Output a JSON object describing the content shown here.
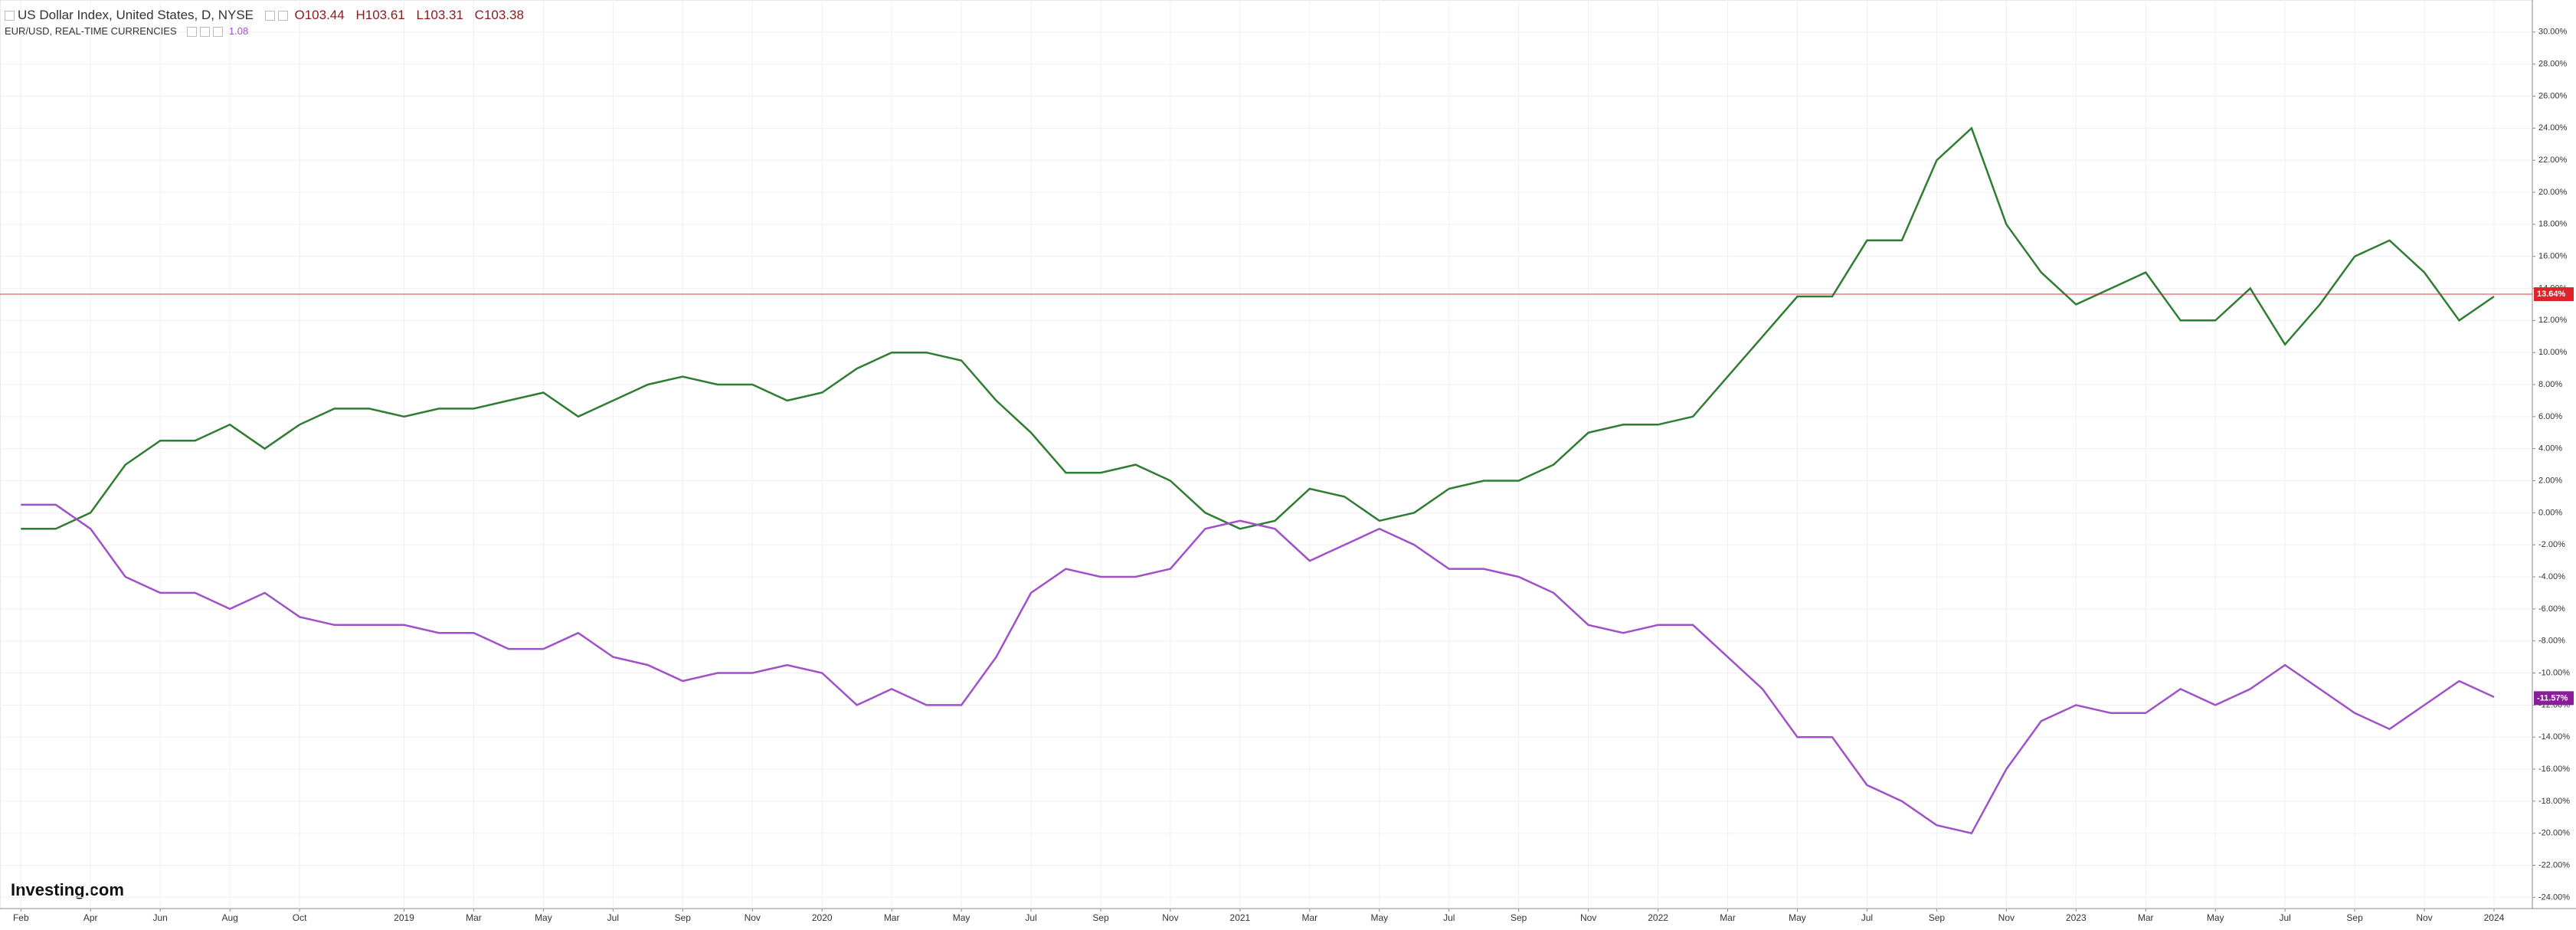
{
  "chart_data": {
    "type": "line",
    "header": {
      "symbol": "US Dollar Index, United States, D, NYSE",
      "open": "O103.44",
      "high": "H103.61",
      "low": "L103.31",
      "close": "C103.38",
      "compare": "EUR/USD, REAL-TIME CURRENCIES",
      "compare_value": "1.08"
    },
    "logo": "Investing.com",
    "x": [
      0,
      1,
      2,
      3,
      4,
      5,
      6,
      7,
      8,
      9,
      10,
      11,
      12,
      13,
      14,
      15,
      16,
      17,
      18,
      19,
      20,
      21,
      22,
      23,
      24,
      25,
      26,
      27,
      28,
      29,
      30,
      31,
      32,
      33,
      34,
      35,
      36,
      37,
      38,
      39,
      40,
      41,
      42,
      43,
      44,
      45,
      46,
      47,
      48,
      49,
      50,
      51,
      52,
      53,
      54,
      55,
      56,
      57,
      58,
      59,
      60,
      61,
      62,
      63,
      64,
      65,
      66,
      67,
      68,
      69,
      70,
      71
    ],
    "series": [
      {
        "color": "#2e7d32",
        "values": [
          -1,
          -1,
          0,
          3,
          4.5,
          4.5,
          5.5,
          4,
          5.5,
          6.5,
          6.5,
          6,
          6.5,
          6.5,
          7,
          7.5,
          6,
          7,
          8,
          8.5,
          8,
          8,
          7,
          7.5,
          9,
          10,
          10,
          9.5,
          7,
          5,
          2.5,
          2.5,
          3,
          2,
          0,
          -1,
          -0.5,
          1.5,
          1,
          -0.5,
          0,
          1.5,
          2,
          2,
          3,
          5,
          5.5,
          5.5,
          6,
          8.5,
          11,
          13.5,
          13.5,
          17,
          17,
          22,
          24,
          18,
          15,
          13,
          14,
          15,
          12,
          12,
          14,
          10.5,
          13,
          16,
          17,
          15,
          12,
          13.5
        ]
      },
      {
        "color": "#a050c8",
        "values": [
          0.5,
          0.5,
          -1,
          -4,
          -5,
          -5,
          -6,
          -5,
          -6.5,
          -7,
          -7,
          -7,
          -7.5,
          -7.5,
          -8.5,
          -8.5,
          -7.5,
          -9,
          -9.5,
          -10.5,
          -10,
          -10,
          -9.5,
          -10,
          -12,
          -11,
          -12,
          -12,
          -9,
          -5,
          -3.5,
          -4,
          -4,
          -3.5,
          -1,
          -0.5,
          -1,
          -3,
          -2,
          -1,
          -2,
          -3.5,
          -3.5,
          -4,
          -5,
          -7,
          -7.5,
          -7,
          -7,
          -9,
          -11,
          -14,
          -14,
          -17,
          -18,
          -19.5,
          -20,
          -16,
          -13,
          -12,
          -12.5,
          -12.5,
          -11,
          -12,
          -11,
          -9.5,
          -11,
          -12.5,
          -13.5,
          -12,
          -10.5,
          -11.5
        ]
      }
    ],
    "last_labels": [
      {
        "value": 13.64,
        "label": "13.64%",
        "color": "#e0232a"
      },
      {
        "value": -11.57,
        "label": "-11.57%",
        "color": "#8a1e9a"
      }
    ],
    "xlim": [
      -0.6,
      72.1
    ],
    "ylim": [
      -24.7,
      32
    ],
    "xticks": [
      {
        "value": 0,
        "label": "Feb"
      },
      {
        "value": 2,
        "label": "Apr"
      },
      {
        "value": 4,
        "label": "Jun"
      },
      {
        "value": 6,
        "label": "Aug"
      },
      {
        "value": 8,
        "label": "Oct"
      },
      {
        "value": 11,
        "label": "2019"
      },
      {
        "value": 13,
        "label": "Mar"
      },
      {
        "value": 15,
        "label": "May"
      },
      {
        "value": 17,
        "label": "Jul"
      },
      {
        "value": 19,
        "label": "Sep"
      },
      {
        "value": 21,
        "label": "Nov"
      },
      {
        "value": 23,
        "label": "2020"
      },
      {
        "value": 25,
        "label": "Mar"
      },
      {
        "value": 27,
        "label": "May"
      },
      {
        "value": 29,
        "label": "Jul"
      },
      {
        "value": 31,
        "label": "Sep"
      },
      {
        "value": 33,
        "label": "Nov"
      },
      {
        "value": 35,
        "label": "2021"
      },
      {
        "value": 37,
        "label": "Mar"
      },
      {
        "value": 39,
        "label": "May"
      },
      {
        "value": 41,
        "label": "Jul"
      },
      {
        "value": 43,
        "label": "Sep"
      },
      {
        "value": 45,
        "label": "Nov"
      },
      {
        "value": 47,
        "label": "2022"
      },
      {
        "value": 49,
        "label": "Mar"
      },
      {
        "value": 51,
        "label": "May"
      },
      {
        "value": 53,
        "label": "Jul"
      },
      {
        "value": 55,
        "label": "Sep"
      },
      {
        "value": 57,
        "label": "Nov"
      },
      {
        "value": 59,
        "label": "2023"
      },
      {
        "value": 61,
        "label": "Mar"
      },
      {
        "value": 63,
        "label": "May"
      },
      {
        "value": 65,
        "label": "Jul"
      },
      {
        "value": 67,
        "label": "Sep"
      },
      {
        "value": 69,
        "label": "Nov"
      },
      {
        "value": 71,
        "label": "2024"
      }
    ],
    "yticks": [
      {
        "value": 30,
        "label": "30.00%"
      },
      {
        "value": 28,
        "label": "28.00%"
      },
      {
        "value": 26,
        "label": "26.00%"
      },
      {
        "value": 24,
        "label": "24.00%"
      },
      {
        "value": 22,
        "label": "22.00%"
      },
      {
        "value": 20,
        "label": "20.00%"
      },
      {
        "value": 18,
        "label": "18.00%"
      },
      {
        "value": 16,
        "label": "16.00%"
      },
      {
        "value": 14,
        "label": "14.00%"
      },
      {
        "value": 12,
        "label": "12.00%"
      },
      {
        "value": 10,
        "label": "10.00%"
      },
      {
        "value": 8,
        "label": "8.00%"
      },
      {
        "value": 6,
        "label": "6.00%"
      },
      {
        "value": 4,
        "label": "4.00%"
      },
      {
        "value": 2,
        "label": "2.00%"
      },
      {
        "value": 0,
        "label": "0.00%"
      },
      {
        "value": -2,
        "label": "-2.00%"
      },
      {
        "value": -4,
        "label": "-4.00%"
      },
      {
        "value": -6,
        "label": "-6.00%"
      },
      {
        "value": -8,
        "label": "-8.00%"
      },
      {
        "value": -10,
        "label": "-10.00%"
      },
      {
        "value": -12,
        "label": "-12.00%"
      },
      {
        "value": -14,
        "label": "-14.00%"
      },
      {
        "value": -16,
        "label": "-16.00%"
      },
      {
        "value": -18,
        "label": "-18.00%"
      },
      {
        "value": -20,
        "label": "-20.00%"
      },
      {
        "value": -22,
        "label": "-22.00%"
      },
      {
        "value": -24,
        "label": "-24.00%"
      }
    ],
    "grid": true
  }
}
